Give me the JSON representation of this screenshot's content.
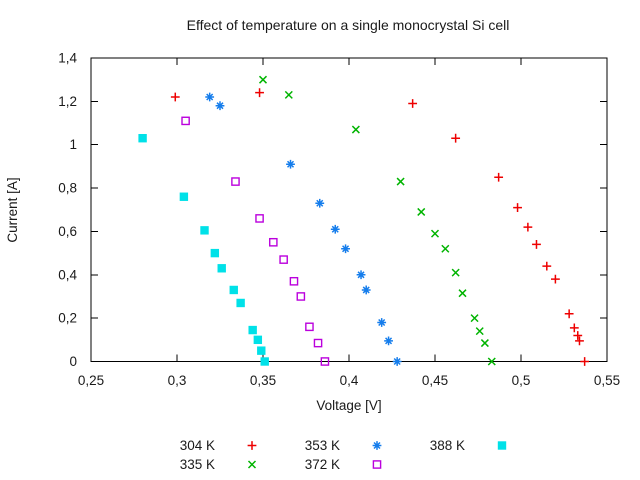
{
  "chart_data": {
    "type": "scatter",
    "title": "Effect of temperature on a single monocrystal Si cell",
    "xlabel": "Voltage [V]",
    "ylabel": "Current [A]",
    "xlim": [
      0.25,
      0.55
    ],
    "ylim": [
      0,
      1.4
    ],
    "x_ticks": [
      0.25,
      0.3,
      0.35,
      0.4,
      0.45,
      0.5,
      0.55
    ],
    "x_tick_labels": [
      "0,25",
      "0,3",
      "0,35",
      "0,4",
      "0,45",
      "0,5",
      "0,55"
    ],
    "y_ticks": [
      0,
      0.2,
      0.4,
      0.6,
      0.8,
      1,
      1.2,
      1.4
    ],
    "y_tick_labels": [
      "0",
      "0,2",
      "0,4",
      "0,6",
      "0,8",
      "1",
      "1,2",
      "1,4"
    ],
    "grid": false,
    "decimal_separator": ",",
    "legend_position": "bottom-center",
    "background_color": "#ffffff",
    "border_color": "#000000",
    "text_color": "#1a1a1a",
    "series": [
      {
        "name": "304 K",
        "color": "#ee0000",
        "marker": "plus",
        "points": [
          [
            0.299,
            1.22
          ],
          [
            0.348,
            1.24
          ],
          [
            0.437,
            1.19
          ],
          [
            0.462,
            1.03
          ],
          [
            0.487,
            0.85
          ],
          [
            0.498,
            0.71
          ],
          [
            0.504,
            0.62
          ],
          [
            0.509,
            0.54
          ],
          [
            0.515,
            0.44
          ],
          [
            0.52,
            0.38
          ],
          [
            0.528,
            0.22
          ],
          [
            0.531,
            0.155
          ],
          [
            0.533,
            0.12
          ],
          [
            0.534,
            0.095
          ],
          [
            0.537,
            0.0
          ]
        ]
      },
      {
        "name": "335 K",
        "color": "#00b400",
        "marker": "cross",
        "points": [
          [
            0.35,
            1.3
          ],
          [
            0.365,
            1.23
          ],
          [
            0.404,
            1.07
          ],
          [
            0.43,
            0.83
          ],
          [
            0.442,
            0.69
          ],
          [
            0.45,
            0.59
          ],
          [
            0.456,
            0.52
          ],
          [
            0.462,
            0.41
          ],
          [
            0.466,
            0.315
          ],
          [
            0.473,
            0.2
          ],
          [
            0.476,
            0.14
          ],
          [
            0.479,
            0.085
          ],
          [
            0.483,
            0.0
          ]
        ]
      },
      {
        "name": "353 K",
        "color": "#157dec",
        "marker": "asterisk",
        "points": [
          [
            0.319,
            1.22
          ],
          [
            0.325,
            1.18
          ],
          [
            0.366,
            0.91
          ],
          [
            0.383,
            0.73
          ],
          [
            0.392,
            0.61
          ],
          [
            0.398,
            0.52
          ],
          [
            0.407,
            0.4
          ],
          [
            0.41,
            0.33
          ],
          [
            0.419,
            0.18
          ],
          [
            0.423,
            0.095
          ],
          [
            0.428,
            0.0
          ]
        ]
      },
      {
        "name": "372 K",
        "color": "#bb00dd",
        "marker": "open-square",
        "points": [
          [
            0.305,
            1.11
          ],
          [
            0.334,
            0.83
          ],
          [
            0.348,
            0.66
          ],
          [
            0.356,
            0.55
          ],
          [
            0.362,
            0.47
          ],
          [
            0.368,
            0.37
          ],
          [
            0.372,
            0.3
          ],
          [
            0.377,
            0.16
          ],
          [
            0.382,
            0.085
          ],
          [
            0.386,
            0.0
          ]
        ]
      },
      {
        "name": "388 K",
        "color": "#00e1e8",
        "marker": "filled-square",
        "points": [
          [
            0.28,
            1.03
          ],
          [
            0.304,
            0.76
          ],
          [
            0.316,
            0.605
          ],
          [
            0.322,
            0.5
          ],
          [
            0.326,
            0.43
          ],
          [
            0.333,
            0.33
          ],
          [
            0.337,
            0.27
          ],
          [
            0.344,
            0.145
          ],
          [
            0.347,
            0.1
          ],
          [
            0.349,
            0.05
          ],
          [
            0.351,
            0.0
          ]
        ]
      }
    ]
  }
}
